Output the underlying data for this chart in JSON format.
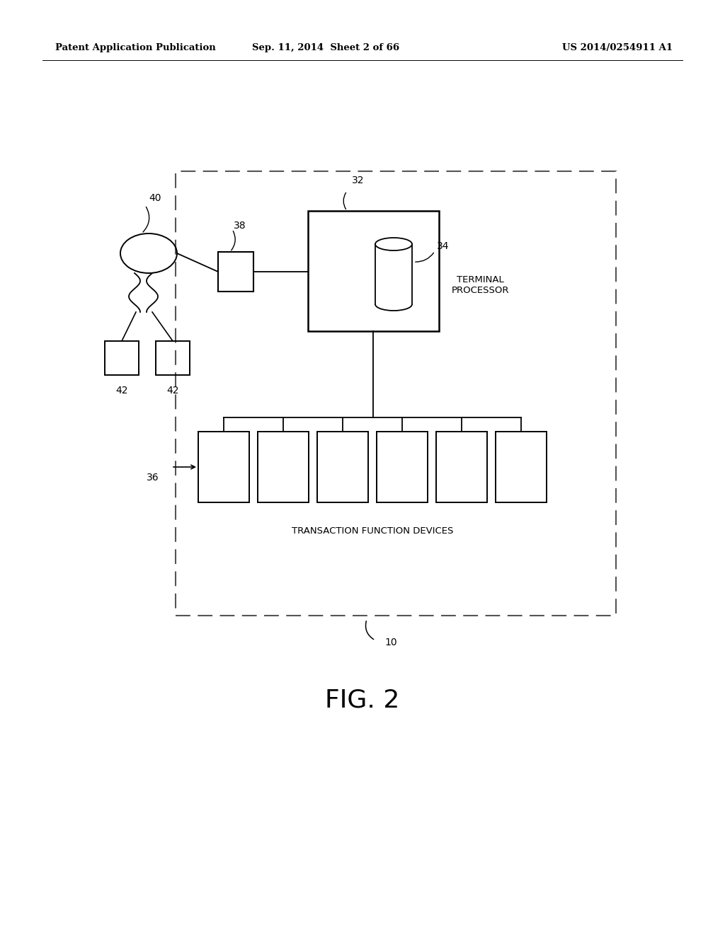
{
  "bg_color": "#ffffff",
  "header_left": "Patent Application Publication",
  "header_center": "Sep. 11, 2014  Sheet 2 of 66",
  "header_right": "US 2014/0254911 A1",
  "fig_label": "FIG. 2",
  "label_10": "10",
  "label_32": "32",
  "label_34": "34",
  "label_36": "36",
  "label_38": "38",
  "label_40": "40",
  "label_42a": "42",
  "label_42b": "42",
  "text_terminal": "TERMINAL\nPROCESSOR",
  "text_tfd": "TRANSACTION FUNCTION DEVICES"
}
